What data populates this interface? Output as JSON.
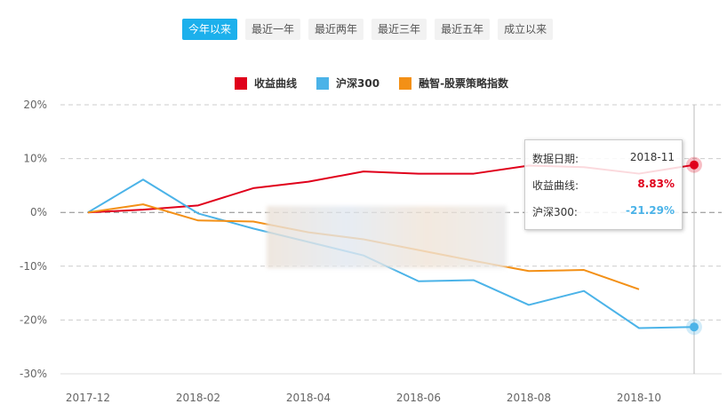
{
  "range_buttons": [
    {
      "label": "今年以来",
      "active": true
    },
    {
      "label": "最近一年",
      "active": false
    },
    {
      "label": "最近两年",
      "active": false
    },
    {
      "label": "最近三年",
      "active": false
    },
    {
      "label": "最近五年",
      "active": false
    },
    {
      "label": "成立以来",
      "active": false
    }
  ],
  "legend": [
    {
      "label": "收益曲线",
      "color": "#e0001b"
    },
    {
      "label": "沪深300",
      "color": "#4bb3e8"
    },
    {
      "label": "融智-股票策略指数",
      "color": "#f39016"
    }
  ],
  "tooltip": {
    "date_label": "数据日期:",
    "date_value": "2018-11",
    "series1_label": "收益曲线:",
    "series1_value": "8.83%",
    "series2_label": "沪深300:",
    "series2_value": "-21.29%"
  },
  "chart_data": {
    "type": "line",
    "title": "",
    "xlabel": "",
    "ylabel": "",
    "x": [
      "2017-12",
      "2018-01",
      "2018-02",
      "2018-03",
      "2018-04",
      "2018-05",
      "2018-06",
      "2018-07",
      "2018-08",
      "2018-09",
      "2018-10",
      "2018-11"
    ],
    "x_tick_labels": [
      "2017-12",
      "2018-02",
      "2018-04",
      "2018-06",
      "2018-08",
      "2018-10"
    ],
    "y_tick_labels": [
      "20%",
      "10%",
      "0%",
      "-10%",
      "-20%",
      "-30%"
    ],
    "ylim": [
      -30,
      20
    ],
    "grid": true,
    "legend_position": "top",
    "series": [
      {
        "name": "收益曲线",
        "color": "#e0001b",
        "values": [
          0,
          0.5,
          1.3,
          4.5,
          5.7,
          7.6,
          7.2,
          7.2,
          8.7,
          8.4,
          7.2,
          8.83
        ]
      },
      {
        "name": "沪深300",
        "color": "#4bb3e8",
        "values": [
          0,
          6.1,
          -0.2,
          -3.0,
          -5.5,
          -8.0,
          -12.8,
          -12.6,
          -17.2,
          -14.6,
          -21.5,
          -21.29
        ]
      },
      {
        "name": "融智-股票策略指数",
        "color": "#f39016",
        "values": [
          0,
          1.5,
          -1.5,
          -1.7,
          -3.7,
          -5.0,
          -7.0,
          -9.0,
          -10.9,
          -10.7,
          -14.3,
          null
        ]
      }
    ],
    "highlight": {
      "x": "2018-11",
      "收益曲线": 8.83,
      "沪深300": -21.29
    }
  }
}
